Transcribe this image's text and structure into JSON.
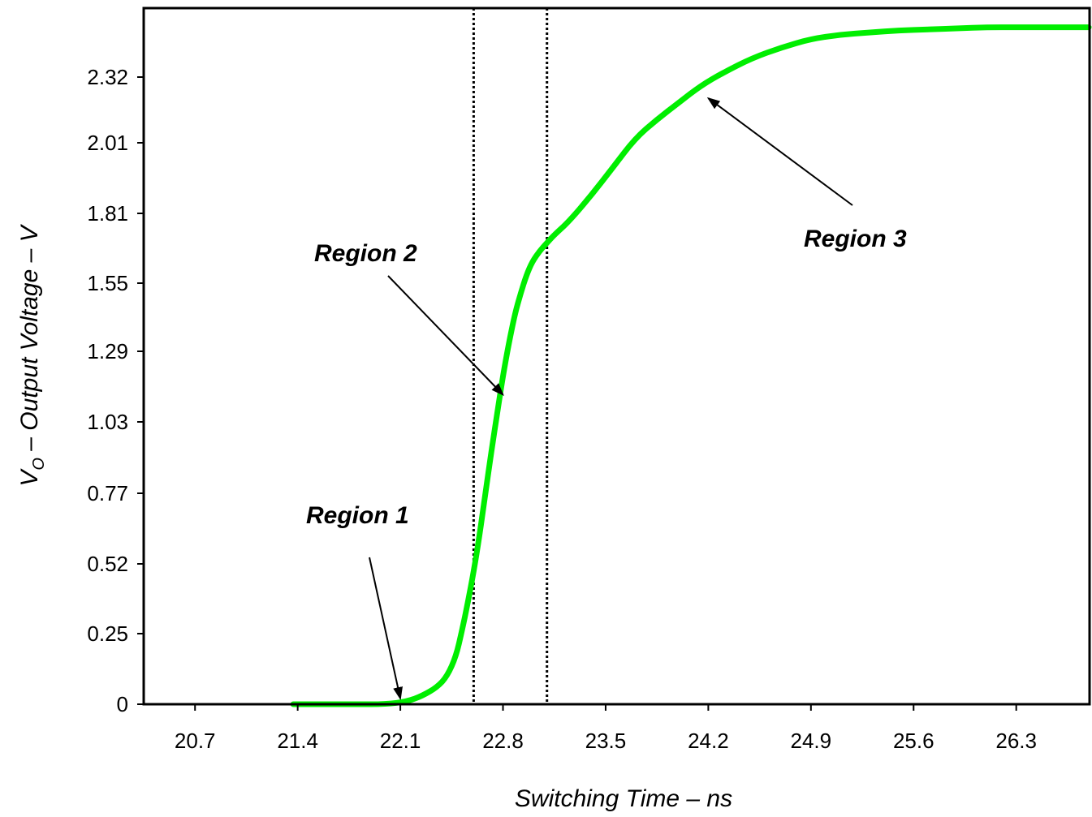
{
  "chart_data": {
    "type": "line",
    "title": "",
    "xlabel": "Switching Time – ns",
    "ylabel_prefix": "V",
    "ylabel_subscript": "O",
    "ylabel_rest": " – Output Voltage – V",
    "x_ticks": [
      "20.7",
      "21.4",
      "22.1",
      "22.8",
      "23.5",
      "24.2",
      "24.9",
      "25.6",
      "26.3"
    ],
    "y_ticks": [
      "0",
      "0.25",
      "0.52",
      "0.77",
      "1.03",
      "1.29",
      "1.55",
      "1.81",
      "2.01",
      "2.32"
    ],
    "xlim": [
      20.35,
      26.8
    ],
    "grid": false,
    "legend": "none",
    "series": [
      {
        "color": "#00ee00",
        "x": [
          21.37,
          21.6,
          21.8,
          22.0,
          22.15,
          22.25,
          22.35,
          22.42,
          22.48,
          22.52,
          22.56,
          22.6,
          22.64,
          22.68,
          22.72,
          22.76,
          22.8,
          22.84,
          22.88,
          22.92,
          22.96,
          23.0,
          23.05,
          23.1,
          23.15,
          23.25,
          23.4,
          23.55,
          23.7,
          23.85,
          24.0,
          24.15,
          24.3,
          24.5,
          24.7,
          24.9,
          25.1,
          25.3,
          25.5,
          25.7,
          25.9,
          26.1,
          26.3,
          26.5,
          26.8
        ],
        "y": [
          0.0,
          0.0,
          0.0,
          0.0,
          0.01,
          0.03,
          0.06,
          0.1,
          0.17,
          0.26,
          0.37,
          0.49,
          0.62,
          0.77,
          0.92,
          1.06,
          1.2,
          1.32,
          1.43,
          1.51,
          1.58,
          1.63,
          1.67,
          1.7,
          1.73,
          1.78,
          1.86,
          1.94,
          2.03,
          2.12,
          2.2,
          2.28,
          2.34,
          2.41,
          2.46,
          2.5,
          2.52,
          2.53,
          2.54,
          2.545,
          2.55,
          2.555,
          2.555,
          2.555,
          2.555
        ]
      }
    ],
    "boundaries": [
      22.6,
      23.1
    ],
    "annotations": [
      {
        "text": "Region 1",
        "arrow_to": [
          22.1,
          0.02
        ]
      },
      {
        "text": "Region 2",
        "arrow_to": [
          22.8,
          1.13
        ]
      },
      {
        "text": "Region 3",
        "arrow_to": [
          24.2,
          2.22
        ]
      }
    ]
  }
}
